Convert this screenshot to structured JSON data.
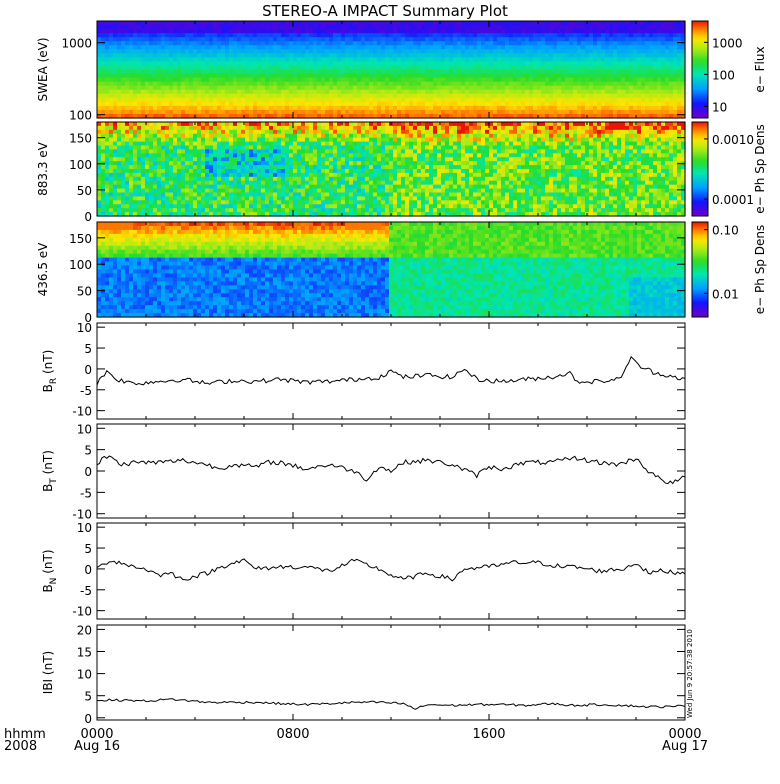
{
  "title": "STEREO-A IMPACT Summary Plot",
  "x_axis": {
    "row1_label": "hhmm",
    "row2_label": "2008",
    "ticks": [
      {
        "hhmm": "0000",
        "date": "Aug 16"
      },
      {
        "hhmm": "0800",
        "date": ""
      },
      {
        "hhmm": "1600",
        "date": ""
      },
      {
        "hhmm": "0000",
        "date": "Aug 17"
      }
    ]
  },
  "timestamp": "Wed Jun  9 20:57:38 2010",
  "chart_data": [
    {
      "type": "heatmap",
      "id": "swea",
      "ylabel": "SWEA (eV)",
      "yscale": "log",
      "ylim": [
        90,
        2000
      ],
      "yticks": [
        "100",
        "1000"
      ],
      "colorbar": {
        "label": "e− Flux",
        "scale": "log",
        "ticks": [
          "10",
          "100",
          "1000"
        ],
        "range": [
          3,
          3000
        ]
      },
      "description_levels": "high flux (red) at low energy near 100 eV, decreasing to blue/purple near 2000 eV"
    },
    {
      "type": "heatmap",
      "id": "pad883",
      "ylabel": "883.3 eV",
      "ylim": [
        0,
        180
      ],
      "yticks": [
        "0",
        "50",
        "100",
        "150"
      ],
      "colorbar": {
        "label": "e− Ph Sp Dens",
        "scale": "log",
        "ticks": [
          "0.0001",
          "0.0010"
        ],
        "range": [
          3e-05,
          0.002
        ]
      }
    },
    {
      "type": "heatmap",
      "id": "pad436",
      "ylabel": "436.5 eV",
      "ylim": [
        0,
        180
      ],
      "yticks": [
        "0",
        "50",
        "100",
        "150"
      ],
      "colorbar": {
        "label": "e− Ph Sp Dens",
        "scale": "log",
        "ticks": [
          "0.01",
          "0.10"
        ],
        "range": [
          0.004,
          0.13
        ]
      }
    },
    {
      "type": "line",
      "id": "br",
      "ylabel_main": "B",
      "ylabel_sub": "R",
      "ylabel_unit": "(nT)",
      "ylim": [
        -12,
        11
      ],
      "yticks": [
        "-10",
        "-5",
        "0",
        "5",
        "10"
      ],
      "x_hours": [
        0,
        0.4,
        0.8,
        1.5,
        2.5,
        3.5,
        4.5,
        5.5,
        6.5,
        7.5,
        8.5,
        9.5,
        10.5,
        11.5,
        12.0,
        12.5,
        13.5,
        14.5,
        15.0,
        15.5,
        16.5,
        17.5,
        18.5,
        19.3,
        19.6,
        20.5,
        21.3,
        21.8,
        22.2,
        22.8,
        23.3,
        24
      ],
      "values": [
        -3.5,
        -0.5,
        -2.5,
        -3.5,
        -3.0,
        -2.5,
        -3.5,
        -2.8,
        -3.0,
        -2.5,
        -3.2,
        -3.0,
        -2.5,
        -2.0,
        -0.5,
        -2.0,
        -1.5,
        -2.0,
        0.0,
        -2.5,
        -3.0,
        -2.5,
        -2.0,
        -1.0,
        -3.0,
        -3.0,
        -2.5,
        2.5,
        0.5,
        -1.0,
        -1.5,
        -2.5
      ]
    },
    {
      "type": "line",
      "id": "bt",
      "ylabel_main": "B",
      "ylabel_sub": "T",
      "ylabel_unit": "(nT)",
      "ylim": [
        -11,
        11
      ],
      "yticks": [
        "-10",
        "-5",
        "0",
        "5",
        "10"
      ],
      "x_hours": [
        0,
        0.3,
        0.6,
        1.0,
        1.5,
        2.5,
        3.5,
        4.5,
        5.0,
        5.5,
        6.5,
        7.0,
        7.5,
        8.5,
        9.5,
        10.5,
        11.0,
        11.5,
        12.0,
        12.5,
        13.5,
        14.5,
        15.5,
        16.0,
        16.5,
        17.5,
        18.5,
        19.5,
        20.5,
        21.3,
        22.0,
        22.5,
        23.0,
        23.5,
        24
      ],
      "values": [
        1.0,
        3.5,
        3.0,
        1.5,
        2.0,
        2.0,
        2.5,
        1.5,
        0.5,
        1.5,
        1.0,
        2.0,
        2.0,
        0.5,
        1.5,
        0.0,
        -2.0,
        1.0,
        0.0,
        2.0,
        2.5,
        1.5,
        -1.0,
        1.0,
        0.5,
        2.0,
        2.0,
        3.0,
        2.0,
        1.5,
        3.0,
        0.0,
        -2.0,
        -3.0,
        -1.0
      ]
    },
    {
      "type": "line",
      "id": "bn",
      "ylabel_main": "B",
      "ylabel_sub": "N",
      "ylabel_unit": "(nT)",
      "ylim": [
        -12,
        11
      ],
      "yticks": [
        "-10",
        "-5",
        "0",
        "5",
        "10"
      ],
      "x_hours": [
        0,
        0.5,
        1.0,
        1.5,
        2.0,
        2.5,
        3.0,
        3.5,
        4.5,
        5.5,
        6.0,
        6.5,
        7.5,
        8.5,
        9.5,
        10.5,
        11.0,
        11.5,
        12.0,
        12.5,
        13.5,
        14.5,
        15.0,
        16.0,
        17.0,
        18.0,
        19.0,
        19.5,
        20.5,
        21.5,
        22.0,
        22.5,
        23.0,
        24
      ],
      "values": [
        0.0,
        2.0,
        1.5,
        0.5,
        0.0,
        -1.5,
        -1.0,
        -2.5,
        -1.0,
        1.5,
        2.0,
        0.0,
        0.5,
        0.5,
        -0.5,
        2.0,
        1.0,
        0.0,
        -1.5,
        -2.5,
        -1.0,
        -2.5,
        0.0,
        0.5,
        1.5,
        1.5,
        0.5,
        0.5,
        -0.5,
        0.0,
        1.5,
        -1.0,
        -0.5,
        -1.0
      ]
    },
    {
      "type": "line",
      "id": "bmag",
      "ylabel_main": "IBI",
      "ylabel_sub": "",
      "ylabel_unit": "(nT)",
      "ylim": [
        -0.5,
        21
      ],
      "yticks": [
        "0",
        "5",
        "10",
        "15",
        "20"
      ],
      "x_hours": [
        0,
        1,
        2,
        3,
        3.5,
        4.5,
        5.5,
        6.5,
        7.5,
        8.5,
        9.5,
        10.5,
        11.5,
        12.5,
        13.0,
        13.5,
        14.5,
        15.5,
        16.5,
        17.5,
        18.5,
        19.5,
        20.5,
        21.5,
        22.5,
        23.5,
        24
      ],
      "values": [
        4.0,
        4.0,
        3.8,
        4.2,
        4.0,
        3.5,
        3.5,
        3.5,
        3.2,
        3.0,
        3.2,
        3.5,
        3.5,
        3.2,
        2.0,
        3.0,
        2.8,
        3.0,
        3.0,
        2.8,
        3.2,
        2.8,
        3.0,
        2.8,
        2.5,
        2.5,
        2.8
      ]
    }
  ]
}
